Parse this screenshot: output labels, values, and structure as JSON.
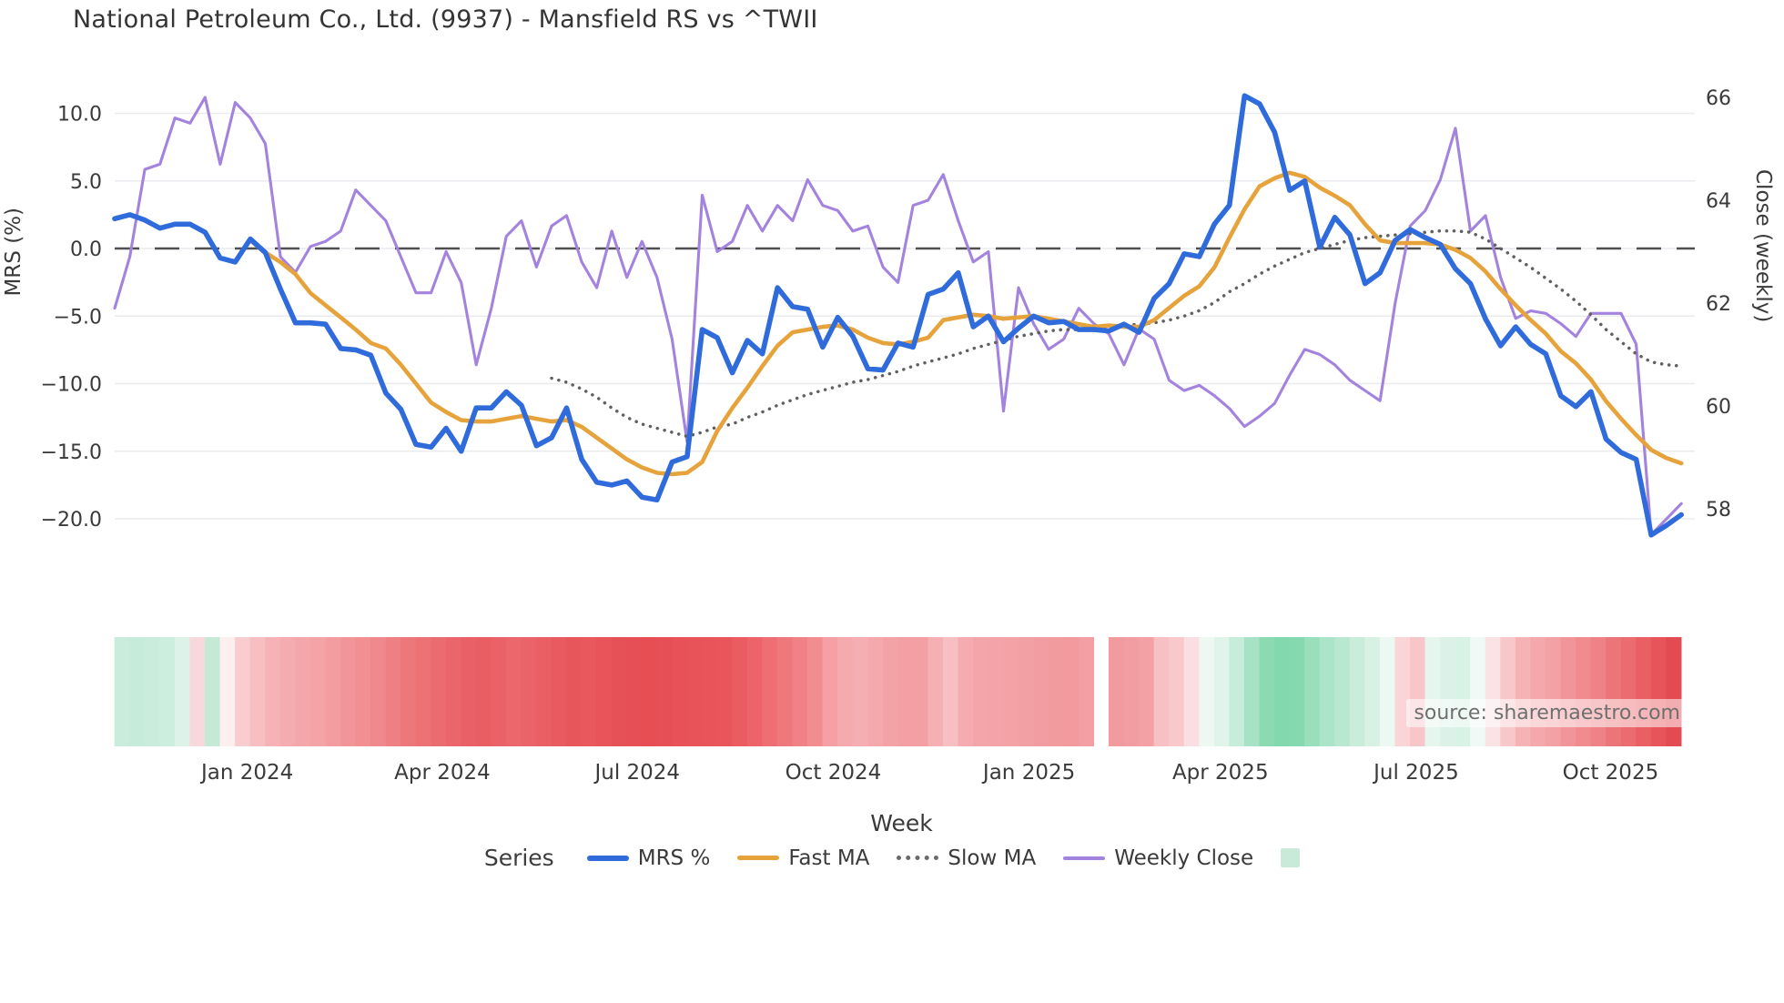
{
  "title": "National Petroleum Co., Ltd. (9937) - Mansfield RS vs ^TWII",
  "source_note": "source: sharemaestro.com",
  "axes": {
    "left_label": "MRS (%)",
    "right_label": "Close (weekly)",
    "x_label": "Week",
    "left_ticks": [
      {
        "label": "10.0",
        "value": 10
      },
      {
        "label": "5.0",
        "value": 5
      },
      {
        "label": "0.0",
        "value": 0
      },
      {
        "label": "−5.0",
        "value": -5
      },
      {
        "label": "−10.0",
        "value": -10
      },
      {
        "label": "−15.0",
        "value": -15
      },
      {
        "label": "−20.0",
        "value": -20
      }
    ],
    "right_ticks": [
      {
        "label": "66",
        "value": 66
      },
      {
        "label": "64",
        "value": 64
      },
      {
        "label": "62",
        "value": 62
      },
      {
        "label": "60",
        "value": 60
      },
      {
        "label": "58",
        "value": 58
      }
    ],
    "x_ticks": [
      {
        "label": "Jan 2024",
        "week": 8.8
      },
      {
        "label": "Apr 2024",
        "week": 21.75
      },
      {
        "label": "Jul 2024",
        "week": 34.7
      },
      {
        "label": "Oct 2024",
        "week": 47.7
      },
      {
        "label": "Jan 2025",
        "week": 60.7
      },
      {
        "label": "Apr 2025",
        "week": 73.4
      },
      {
        "label": "Jul 2025",
        "week": 86.4
      },
      {
        "label": "Oct 2025",
        "week": 99.3
      }
    ]
  },
  "legend": {
    "title": "Series",
    "items": [
      {
        "label": "MRS %",
        "swatch": "line-thick",
        "color": "#2f6bdb"
      },
      {
        "label": "Fast MA",
        "swatch": "line",
        "color": "#e7a33b"
      },
      {
        "label": "Slow MA",
        "swatch": "dotted",
        "color": "#6a6a6a"
      },
      {
        "label": "Weekly Close",
        "swatch": "line-thin",
        "color": "#a383dd"
      },
      {
        "label": "",
        "swatch": "square",
        "color": "#c9ead9"
      }
    ]
  },
  "colors": {
    "mrs": "#2f6bdb",
    "fast_ma": "#e7a33b",
    "slow_ma": "#606060",
    "weekly_close": "#a383dd",
    "zero_line": "#4f4f4f",
    "gridline": "#e9ebef",
    "tick_text": "#3a3a3a"
  },
  "chart_data": {
    "type": "line",
    "title": "National Petroleum Co., Ltd. (9937) - Mansfield RS vs ^TWII",
    "xlabel": "Week",
    "ylabel_left": "MRS (%)",
    "ylabel_right": "Close (weekly)",
    "x_unit": "week_index",
    "weeks_total": 105,
    "left_axis_range": [
      -22.5,
      12.7
    ],
    "right_axis_range": [
      57.2,
      66.7
    ],
    "grid": true,
    "legend_position": "bottom",
    "zero_reference_line": 0,
    "series": [
      {
        "name": "MRS %",
        "axis": "left",
        "style": "solid",
        "start_week": 0,
        "values": [
          2.2,
          2.5,
          2.1,
          1.5,
          1.8,
          1.8,
          1.2,
          -0.7,
          -1.0,
          0.7,
          -0.3,
          -3.0,
          -5.5,
          -5.5,
          -5.6,
          -7.4,
          -7.5,
          -7.9,
          -10.7,
          -11.9,
          -14.5,
          -14.7,
          -13.3,
          -15.0,
          -11.8,
          -11.8,
          -10.6,
          -11.6,
          -14.6,
          -14.0,
          -11.8,
          -15.6,
          -17.3,
          -17.5,
          -17.2,
          -18.4,
          -18.6,
          -15.8,
          -15.4,
          -6.0,
          -6.6,
          -9.2,
          -6.8,
          -7.8,
          -2.9,
          -4.3,
          -4.5,
          -7.3,
          -5.1,
          -6.5,
          -8.9,
          -9.0,
          -7.0,
          -7.3,
          -3.4,
          -3.0,
          -1.8,
          -5.8,
          -5.0,
          -6.9,
          -5.9,
          -5.0,
          -5.5,
          -5.4,
          -6.0,
          -6.0,
          -6.1,
          -5.6,
          -6.2,
          -3.7,
          -2.6,
          -0.4,
          -0.6,
          1.8,
          3.2,
          11.3,
          10.7,
          8.6,
          4.3,
          5.0,
          0.1,
          2.3,
          1.0,
          -2.6,
          -1.8,
          0.6,
          1.4,
          0.8,
          0.3,
          -1.5,
          -2.6,
          -5.2,
          -7.2,
          -5.8,
          -7.1,
          -7.8,
          -10.9,
          -11.7,
          -10.6,
          -14.1,
          -15.1,
          -15.6,
          -21.2,
          -20.5,
          -19.7
        ]
      },
      {
        "name": "Fast MA",
        "axis": "left",
        "style": "solid",
        "start_week": 9,
        "values": [
          0.6,
          -0.3,
          -1.0,
          -1.9,
          -3.3,
          -4.2,
          -5.1,
          -6.0,
          -7.0,
          -7.4,
          -8.6,
          -10.0,
          -11.4,
          -12.1,
          -12.7,
          -12.8,
          -12.8,
          -12.6,
          -12.4,
          -12.6,
          -12.8,
          -12.7,
          -13.2,
          -14.0,
          -14.8,
          -15.6,
          -16.2,
          -16.6,
          -16.7,
          -16.6,
          -15.8,
          -13.5,
          -11.8,
          -10.3,
          -8.7,
          -7.2,
          -6.2,
          -6.0,
          -5.8,
          -5.7,
          -6.0,
          -6.6,
          -7.0,
          -7.1,
          -6.9,
          -6.6,
          -5.3,
          -5.1,
          -4.9,
          -5.0,
          -5.2,
          -5.1,
          -5.0,
          -5.2,
          -5.4,
          -5.6,
          -5.8,
          -5.7,
          -5.8,
          -5.8,
          -5.3,
          -4.4,
          -3.5,
          -2.8,
          -1.4,
          0.8,
          2.9,
          4.6,
          5.2,
          5.6,
          5.3,
          4.5,
          3.9,
          3.2,
          1.8,
          0.6,
          0.4,
          0.4,
          0.4,
          0.3,
          -0.1,
          -0.7,
          -1.7,
          -3.0,
          -4.2,
          -5.3,
          -6.3,
          -7.6,
          -8.5,
          -9.7,
          -11.3,
          -12.6,
          -13.8,
          -14.9,
          -15.5,
          -15.9
        ]
      },
      {
        "name": "Slow MA",
        "axis": "left",
        "style": "dotted",
        "start_week": 29,
        "values": [
          -9.6,
          -9.9,
          -10.4,
          -11.0,
          -11.8,
          -12.5,
          -13.0,
          -13.3,
          -13.6,
          -13.9,
          -13.6,
          -13.2,
          -13.0,
          -12.5,
          -12.1,
          -11.6,
          -11.2,
          -10.8,
          -10.5,
          -10.2,
          -9.9,
          -9.7,
          -9.4,
          -9.1,
          -8.7,
          -8.4,
          -8.1,
          -7.8,
          -7.4,
          -7.1,
          -6.8,
          -6.5,
          -6.3,
          -6.1,
          -6.0,
          -6.0,
          -5.9,
          -5.8,
          -5.7,
          -5.6,
          -5.5,
          -5.3,
          -5.0,
          -4.6,
          -4.0,
          -3.2,
          -2.6,
          -1.9,
          -1.3,
          -0.8,
          -0.3,
          0.0,
          0.3,
          0.6,
          0.8,
          0.9,
          1.0,
          1.1,
          1.2,
          1.3,
          1.3,
          1.2,
          0.7,
          0.0,
          -0.7,
          -1.4,
          -2.2,
          -3.0,
          -3.9,
          -4.9,
          -6.0,
          -6.9,
          -7.8,
          -8.4,
          -8.6,
          -8.7
        ]
      },
      {
        "name": "Weekly Close",
        "axis": "right",
        "style": "solid",
        "start_week": 0,
        "values": [
          61.9,
          62.9,
          64.6,
          64.7,
          65.6,
          65.5,
          66.0,
          64.7,
          65.9,
          65.6,
          65.1,
          62.9,
          62.6,
          63.1,
          63.2,
          63.4,
          64.2,
          63.9,
          63.6,
          62.9,
          62.2,
          62.2,
          63.0,
          62.4,
          60.8,
          61.9,
          63.3,
          63.6,
          62.7,
          63.5,
          63.7,
          62.8,
          62.3,
          63.4,
          62.5,
          63.2,
          62.5,
          61.3,
          59.3,
          64.1,
          63.0,
          63.2,
          63.9,
          63.4,
          63.9,
          63.6,
          64.4,
          63.9,
          63.8,
          63.4,
          63.5,
          62.7,
          62.4,
          63.9,
          64.0,
          64.5,
          63.6,
          62.8,
          63.0,
          59.9,
          62.3,
          61.6,
          61.1,
          61.3,
          61.9,
          61.6,
          61.4,
          60.8,
          61.5,
          61.3,
          60.5,
          60.3,
          60.4,
          60.2,
          59.95,
          59.6,
          59.8,
          60.05,
          60.6,
          61.1,
          61.0,
          60.8,
          60.5,
          60.3,
          60.1,
          62.0,
          63.5,
          63.8,
          64.4,
          65.4,
          63.4,
          63.7,
          62.5,
          61.7,
          61.85,
          61.8,
          61.6,
          61.35,
          61.8,
          61.8,
          61.8,
          61.2,
          57.5,
          57.8,
          58.1
        ]
      }
    ],
    "heatmap": {
      "description": "weekly color strip below chart, white gap at index 65",
      "gap_index": 65,
      "colors": [
        "#c9ecdc",
        "#c7ebda",
        "#c9ecdc",
        "#cceede",
        "#ddf3e9",
        "#f9d8db",
        "#c4ead6",
        "#fdeef0",
        "#f9cdd0",
        "#f7bfc2",
        "#f6b3b7",
        "#f5acb0",
        "#f4a7ab",
        "#f4a3a7",
        "#f39da1",
        "#f29599",
        "#f18f93",
        "#f0898d",
        "#ee8084",
        "#ed787c",
        "#ec7276",
        "#eb6c70",
        "#ea666b",
        "#e96166",
        "#e95e63",
        "#ea6267",
        "#eb676c",
        "#ea6368",
        "#e95f64",
        "#e85a5f",
        "#e7565b",
        "#e8585d",
        "#e7545a",
        "#e65158",
        "#e64f55",
        "#e64e54",
        "#e64f55",
        "#e75157",
        "#e75359",
        "#e85459",
        "#e8555a",
        "#ea5c61",
        "#ec6469",
        "#ee6e73",
        "#ef787d",
        "#f08287",
        "#f18c90",
        "#f4a0a4",
        "#f5aaae",
        "#f5afb3",
        "#f4a9ad",
        "#f3a2a6",
        "#f49fa3",
        "#f3a0a4",
        "#f5b0b3",
        "#f7bfc2",
        "#f5abaf",
        "#f4a5a9",
        "#f4a4a8",
        "#f3a2a6",
        "#f3a0a4",
        "#f29da1",
        "#f29b9f",
        "#f29a9e",
        "#f39fa3",
        null,
        "#f29b9f",
        "#f29da1",
        "#f3a1a5",
        "#f7c0c3",
        "#f8c8cb",
        "#fbdee1",
        "#eef8f3",
        "#e0f4ea",
        "#c6ecda",
        "#a8e2c6",
        "#8bdab1",
        "#84d8ad",
        "#86d9af",
        "#9adfbc",
        "#abe4c8",
        "#b8e8d0",
        "#c9edda",
        "#d7f1e3",
        "#ecf8f2",
        "#fad4d7",
        "#f8c6c9",
        "#e6f5ee",
        "#dcf2e8",
        "#d9f2e6",
        "#f0f9f5",
        "#fbe2e4",
        "#f8c7ca",
        "#f5b3b6",
        "#f4a8ac",
        "#f3a1a5",
        "#f1959a",
        "#f08b90",
        "#ee8287",
        "#ec757a",
        "#eb6b70",
        "#e95f64",
        "#e75459",
        "#e14b51"
      ]
    }
  }
}
